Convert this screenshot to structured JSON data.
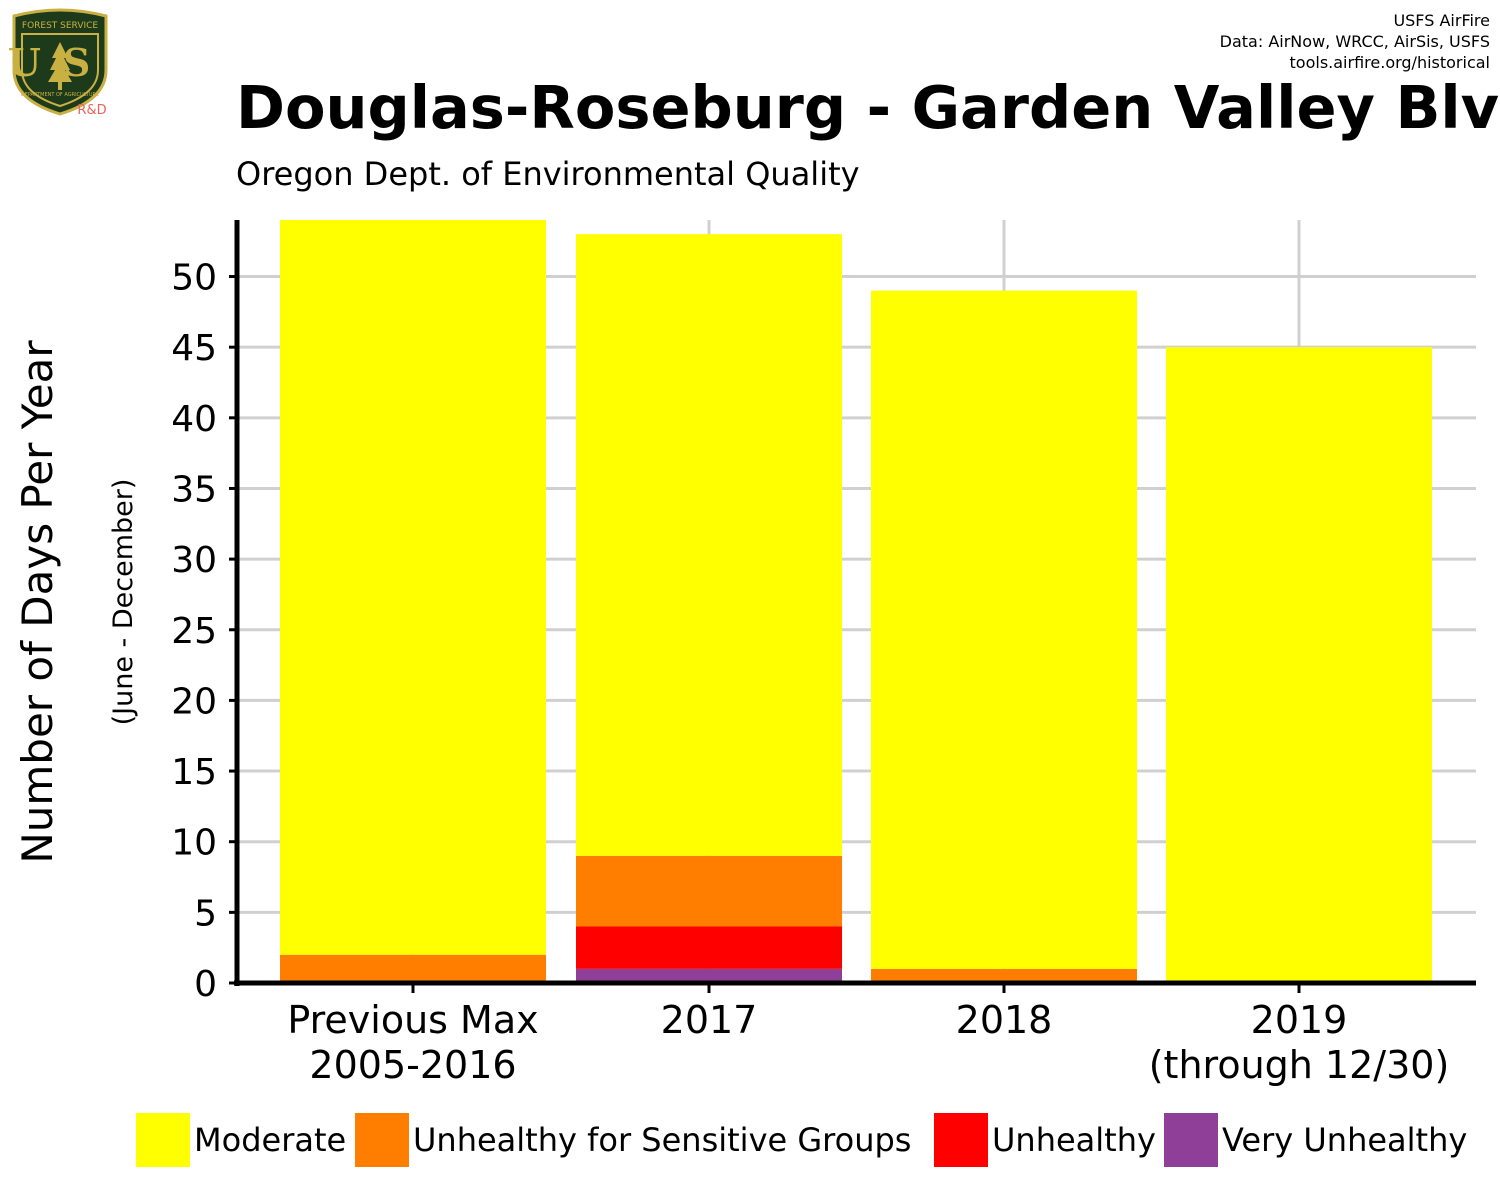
{
  "logo": {
    "top_text": "FOREST SERVICE",
    "letters": "US",
    "bottom_text": "DEPARTMENT OF AGRICULTURE",
    "badge": "R&D"
  },
  "credits": [
    "USFS AirFire",
    "Data: AirNow, WRCC, AirSis, USFS",
    "tools.airfire.org/historical"
  ],
  "colors": {
    "Moderate": "#ffff00",
    "Unhealthy for Sensitive Groups": "#ff7e00",
    "Unhealthy": "#ff0000",
    "Very Unhealthy": "#8f3f97",
    "grid": "#d0d0d0"
  },
  "chart_data": {
    "type": "bar",
    "stacked": true,
    "title": "Douglas-Roseburg - Garden Valley Blvd",
    "subtitle": "Oregon Dept. of Environmental Quality",
    "ylabel": "Number of Days Per Year",
    "ylabel2": "(June - December)",
    "xlabel": "",
    "categories": [
      [
        "Previous Max",
        "2005-2016"
      ],
      [
        "2017"
      ],
      [
        "2018"
      ],
      [
        "2019",
        "(through 12/30)"
      ]
    ],
    "ylim": [
      0,
      54
    ],
    "yticks": [
      0,
      5,
      10,
      15,
      20,
      25,
      30,
      35,
      40,
      45,
      50
    ],
    "grid": true,
    "legend_position": "bottom",
    "series": [
      {
        "name": "Very Unhealthy",
        "values": [
          0,
          1,
          0,
          0
        ]
      },
      {
        "name": "Unhealthy",
        "values": [
          0,
          3,
          0,
          0
        ]
      },
      {
        "name": "Unhealthy for Sensitive Groups",
        "values": [
          2,
          5,
          1,
          0
        ]
      },
      {
        "name": "Moderate",
        "values": [
          52,
          44,
          48,
          45
        ]
      }
    ]
  },
  "legend": [
    {
      "label": "Moderate",
      "color": "#ffff00"
    },
    {
      "label": "Unhealthy for Sensitive Groups",
      "color": "#ff7e00"
    },
    {
      "label": "Unhealthy",
      "color": "#ff0000"
    },
    {
      "label": "Very Unhealthy",
      "color": "#8f3f97"
    }
  ]
}
